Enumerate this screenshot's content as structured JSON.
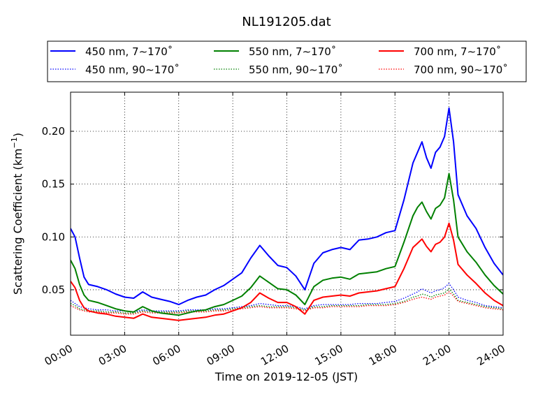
{
  "chart_data": {
    "type": "line",
    "title": "NL191205.dat",
    "xlabel": "Time on 2019-12-05 (JST)",
    "ylabel_main": "Scattering Coefficient (km",
    "ylabel_sup": "−1",
    "ylabel_close": ")",
    "xlim": [
      0,
      24
    ],
    "ylim": [
      0.007,
      0.237
    ],
    "x_ticks": [
      0,
      3,
      6,
      9,
      12,
      15,
      18,
      21,
      24
    ],
    "x_tick_labels": [
      "00:00",
      "03:00",
      "06:00",
      "09:00",
      "12:00",
      "15:00",
      "18:00",
      "21:00",
      "24:00"
    ],
    "y_ticks": [
      0.05,
      0.1,
      0.15,
      0.2
    ],
    "y_tick_labels": [
      "0.05",
      "0.10",
      "0.15",
      "0.20"
    ],
    "grid": true,
    "legend_position": "top",
    "x": [
      0,
      0.25,
      0.5,
      0.75,
      1,
      1.5,
      2,
      2.5,
      3,
      3.5,
      4,
      4.5,
      5,
      5.5,
      6,
      6.5,
      7,
      7.5,
      8,
      8.5,
      9,
      9.5,
      10,
      10.5,
      11,
      11.5,
      12,
      12.5,
      13,
      13.5,
      14,
      14.5,
      15,
      15.5,
      16,
      16.5,
      17,
      17.5,
      18,
      18.5,
      19,
      19.25,
      19.5,
      19.75,
      20,
      20.25,
      20.5,
      20.75,
      21,
      21.25,
      21.5,
      22,
      22.5,
      23,
      23.5,
      24
    ],
    "series": [
      {
        "name": "450 nm, 7∼170˚",
        "color": "#0000ff",
        "style": "solid",
        "values": [
          0.108,
          0.1,
          0.08,
          0.062,
          0.055,
          0.053,
          0.05,
          0.046,
          0.043,
          0.042,
          0.048,
          0.043,
          0.041,
          0.039,
          0.036,
          0.04,
          0.043,
          0.045,
          0.05,
          0.054,
          0.06,
          0.066,
          0.08,
          0.092,
          0.082,
          0.073,
          0.071,
          0.063,
          0.05,
          0.075,
          0.085,
          0.088,
          0.09,
          0.088,
          0.097,
          0.098,
          0.1,
          0.104,
          0.106,
          0.135,
          0.17,
          0.18,
          0.19,
          0.175,
          0.165,
          0.18,
          0.185,
          0.195,
          0.222,
          0.19,
          0.14,
          0.12,
          0.108,
          0.09,
          0.075,
          0.064
        ]
      },
      {
        "name": "550 nm, 7∼170˚",
        "color": "#008000",
        "style": "solid",
        "values": [
          0.078,
          0.07,
          0.055,
          0.045,
          0.04,
          0.038,
          0.035,
          0.032,
          0.03,
          0.029,
          0.034,
          0.03,
          0.028,
          0.027,
          0.026,
          0.028,
          0.03,
          0.031,
          0.034,
          0.036,
          0.04,
          0.044,
          0.052,
          0.063,
          0.057,
          0.051,
          0.05,
          0.045,
          0.036,
          0.053,
          0.059,
          0.061,
          0.062,
          0.06,
          0.065,
          0.066,
          0.067,
          0.07,
          0.072,
          0.095,
          0.12,
          0.128,
          0.133,
          0.124,
          0.117,
          0.127,
          0.13,
          0.137,
          0.16,
          0.135,
          0.1,
          0.086,
          0.076,
          0.064,
          0.054,
          0.046
        ]
      },
      {
        "name": "700 nm, 7∼170˚",
        "color": "#ff0000",
        "style": "solid",
        "values": [
          0.058,
          0.052,
          0.04,
          0.033,
          0.03,
          0.028,
          0.027,
          0.025,
          0.024,
          0.023,
          0.027,
          0.024,
          0.023,
          0.022,
          0.021,
          0.022,
          0.023,
          0.024,
          0.026,
          0.027,
          0.03,
          0.033,
          0.038,
          0.047,
          0.042,
          0.038,
          0.038,
          0.034,
          0.027,
          0.04,
          0.043,
          0.044,
          0.045,
          0.044,
          0.047,
          0.048,
          0.049,
          0.051,
          0.053,
          0.07,
          0.09,
          0.094,
          0.098,
          0.091,
          0.086,
          0.093,
          0.095,
          0.1,
          0.113,
          0.097,
          0.074,
          0.064,
          0.056,
          0.047,
          0.04,
          0.035
        ]
      },
      {
        "name": "450 nm, 90∼170˚",
        "color": "#0000ff",
        "style": "dotted",
        "values": [
          0.04,
          0.037,
          0.034,
          0.033,
          0.032,
          0.031,
          0.031,
          0.03,
          0.03,
          0.029,
          0.031,
          0.03,
          0.03,
          0.03,
          0.03,
          0.031,
          0.031,
          0.031,
          0.032,
          0.032,
          0.033,
          0.034,
          0.035,
          0.037,
          0.036,
          0.035,
          0.035,
          0.034,
          0.032,
          0.035,
          0.036,
          0.036,
          0.036,
          0.036,
          0.037,
          0.037,
          0.037,
          0.038,
          0.039,
          0.042,
          0.046,
          0.048,
          0.051,
          0.049,
          0.047,
          0.049,
          0.05,
          0.052,
          0.056,
          0.05,
          0.043,
          0.04,
          0.038,
          0.035,
          0.034,
          0.033
        ]
      },
      {
        "name": "550 nm, 90∼170˚",
        "color": "#008000",
        "style": "dotted",
        "values": [
          0.037,
          0.035,
          0.032,
          0.031,
          0.03,
          0.03,
          0.029,
          0.029,
          0.028,
          0.028,
          0.03,
          0.029,
          0.029,
          0.029,
          0.029,
          0.03,
          0.03,
          0.03,
          0.031,
          0.031,
          0.032,
          0.033,
          0.034,
          0.035,
          0.034,
          0.034,
          0.034,
          0.033,
          0.031,
          0.034,
          0.034,
          0.035,
          0.035,
          0.035,
          0.035,
          0.036,
          0.036,
          0.036,
          0.037,
          0.039,
          0.043,
          0.044,
          0.046,
          0.045,
          0.043,
          0.045,
          0.046,
          0.047,
          0.051,
          0.046,
          0.04,
          0.038,
          0.036,
          0.034,
          0.033,
          0.032
        ]
      },
      {
        "name": "700 nm, 90∼170˚",
        "color": "#ff0000",
        "style": "dotted",
        "values": [
          0.035,
          0.033,
          0.031,
          0.03,
          0.029,
          0.029,
          0.028,
          0.028,
          0.027,
          0.027,
          0.029,
          0.028,
          0.028,
          0.028,
          0.028,
          0.029,
          0.029,
          0.029,
          0.03,
          0.03,
          0.031,
          0.032,
          0.033,
          0.034,
          0.033,
          0.033,
          0.033,
          0.032,
          0.03,
          0.033,
          0.033,
          0.034,
          0.034,
          0.034,
          0.034,
          0.035,
          0.035,
          0.035,
          0.036,
          0.038,
          0.041,
          0.042,
          0.043,
          0.042,
          0.041,
          0.043,
          0.044,
          0.045,
          0.048,
          0.044,
          0.039,
          0.037,
          0.035,
          0.033,
          0.032,
          0.031
        ]
      }
    ],
    "legend_order": [
      0,
      1,
      2,
      3,
      4,
      5
    ]
  }
}
